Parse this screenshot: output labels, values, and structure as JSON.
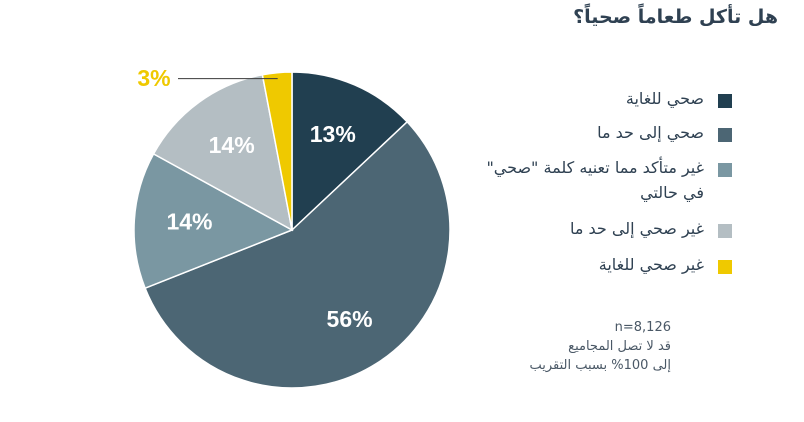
{
  "title": "هل تأكل طعاماً صحياً؟",
  "chart_data": {
    "type": "pie",
    "title": "هل تأكل طعاماً صحياً؟",
    "slices": [
      {
        "label": "صحي للغاية",
        "value": 13,
        "display": "13%",
        "color": "#213f50"
      },
      {
        "label": "صحي إلى حد ما",
        "value": 56,
        "display": "56%",
        "color": "#4c6674"
      },
      {
        "label": "غير متأكد مما تعنيه كلمة \"صحي\" في حالتي",
        "value": 14,
        "display": "14%",
        "color": "#7a97a2"
      },
      {
        "label": "غير صحي إلى حد ما",
        "value": 14,
        "display": "14%",
        "color": "#b4bec3"
      },
      {
        "label": "غير صحي للغاية",
        "value": 3,
        "display": "3%",
        "color": "#efc900"
      }
    ],
    "legend_position": "right"
  },
  "legend": [
    {
      "label": "صحي للغاية",
      "color": "#213f50"
    },
    {
      "label": "صحي إلى حد ما",
      "color": "#4c6674"
    },
    {
      "label": "غير متأكد مما تعنيه كلمة \"صحي\" في حالتي",
      "color": "#7a97a2"
    },
    {
      "label": "غير صحي إلى حد ما",
      "color": "#b4bec3"
    },
    {
      "label": "غير صحي للغاية",
      "color": "#efc900"
    }
  ],
  "note": {
    "n": "n=8,126",
    "line1": "قد لا تصل المجاميع",
    "line2": "إلى 100% بسبب التقريب"
  }
}
